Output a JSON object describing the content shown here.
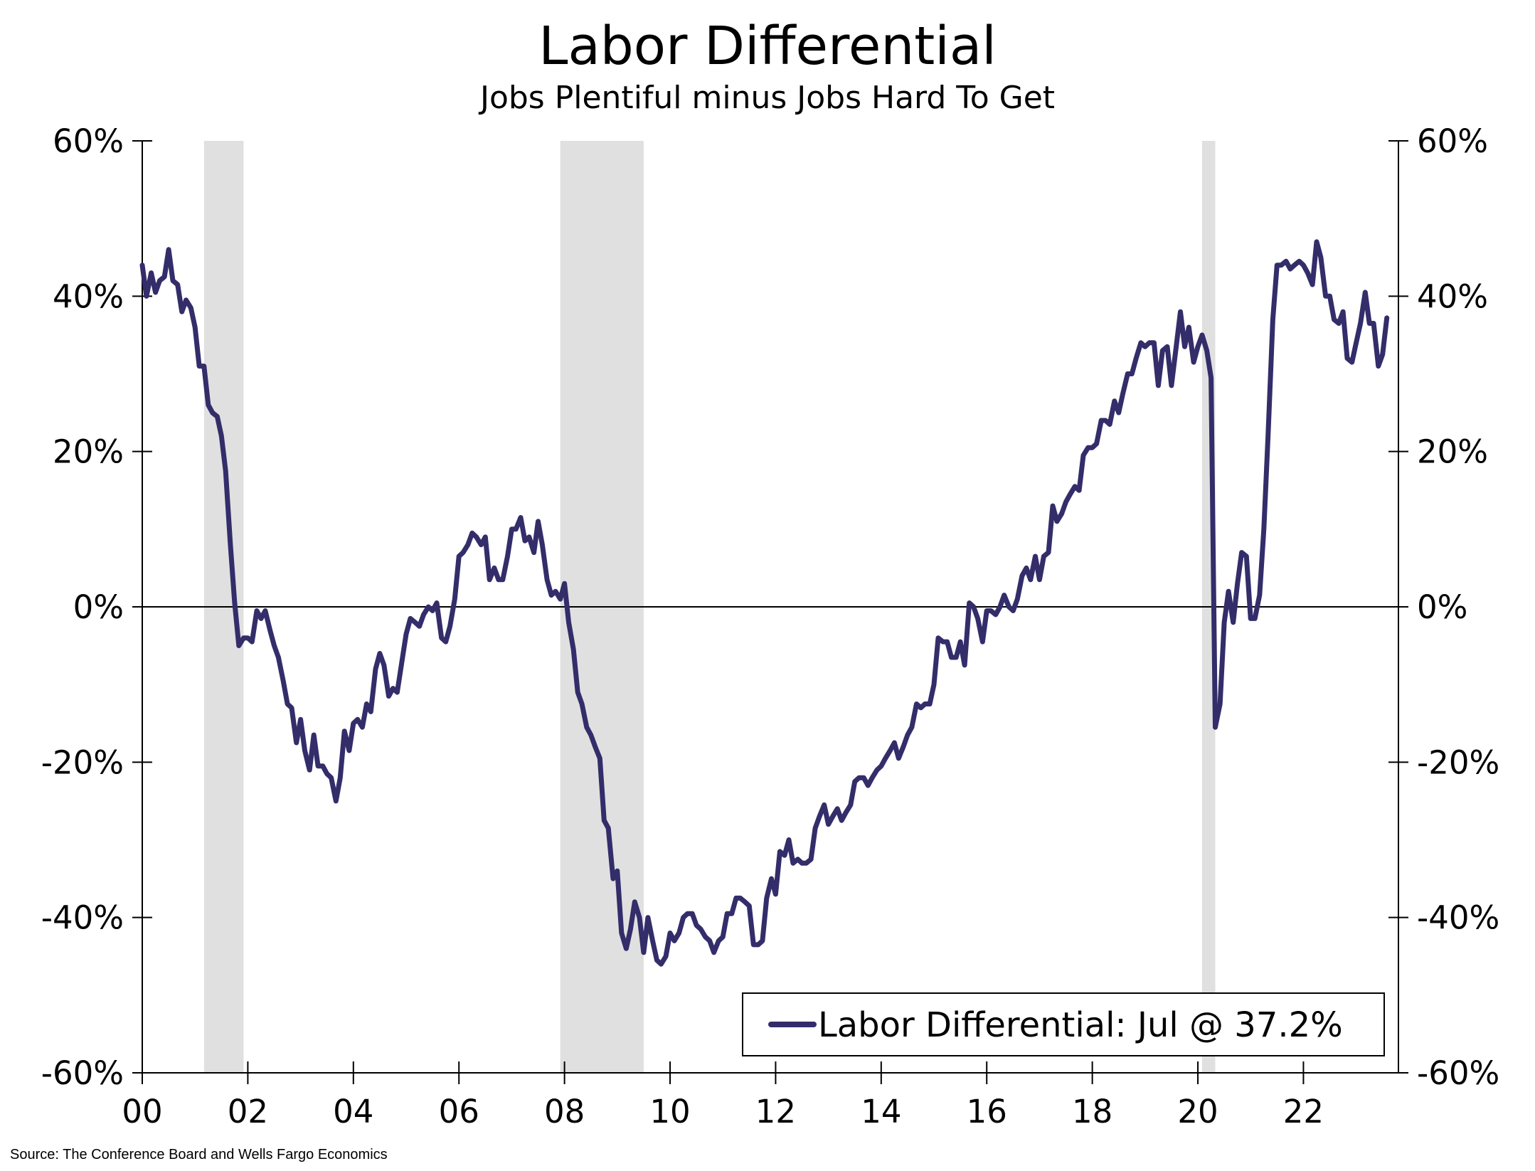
{
  "title": "Labor Differential",
  "subtitle": "Jobs Plentiful minus Jobs Hard To Get",
  "source": "Source: The Conference Board and Wells Fargo Economics",
  "colors": {
    "series": "#332d6a",
    "recession": "#e0e0e0",
    "axis": "#000000"
  },
  "chart_data": {
    "type": "line",
    "title": "Labor Differential",
    "subtitle": "Jobs Plentiful minus Jobs Hard To Get",
    "x_unit": "year",
    "xlim": [
      2000,
      2023.8
    ],
    "ylim": [
      -60,
      60
    ],
    "y_unit": "%",
    "y_ticks": [
      60,
      40,
      20,
      0,
      -20,
      -40,
      -60
    ],
    "y_tick_labels": [
      "60%",
      "40%",
      "20%",
      "0%",
      "-20%",
      "-40%",
      "-60%"
    ],
    "x_ticks": [
      2000,
      2002,
      2004,
      2006,
      2008,
      2010,
      2012,
      2014,
      2016,
      2018,
      2020,
      2022
    ],
    "x_tick_labels": [
      "00",
      "02",
      "04",
      "06",
      "08",
      "10",
      "12",
      "14",
      "16",
      "18",
      "20",
      "22"
    ],
    "secondary_y_axis": true,
    "grid": false,
    "zero_line": true,
    "recessions": [
      {
        "start": 2001.17,
        "end": 2001.92
      },
      {
        "start": 2007.92,
        "end": 2009.5
      },
      {
        "start": 2020.08,
        "end": 2020.33
      }
    ],
    "legend": {
      "placement": "bottom-right"
    },
    "series": [
      {
        "name": "Labor Differential: Jul @ 37.2%",
        "points": [
          [
            2000.0,
            44
          ],
          [
            2000.08,
            40
          ],
          [
            2000.17,
            43
          ],
          [
            2000.25,
            40.5
          ],
          [
            2000.33,
            42
          ],
          [
            2000.42,
            42.5
          ],
          [
            2000.5,
            46
          ],
          [
            2000.58,
            42
          ],
          [
            2000.67,
            41.5
          ],
          [
            2000.75,
            38
          ],
          [
            2000.83,
            39.5
          ],
          [
            2000.92,
            38.5
          ],
          [
            2001.0,
            36
          ],
          [
            2001.08,
            31
          ],
          [
            2001.17,
            31
          ],
          [
            2001.25,
            26
          ],
          [
            2001.33,
            25
          ],
          [
            2001.42,
            24.5
          ],
          [
            2001.5,
            22
          ],
          [
            2001.58,
            17.5
          ],
          [
            2001.67,
            8
          ],
          [
            2001.75,
            0.5
          ],
          [
            2001.83,
            -5
          ],
          [
            2001.92,
            -4
          ],
          [
            2002.0,
            -4
          ],
          [
            2002.08,
            -4.5
          ],
          [
            2002.17,
            -0.5
          ],
          [
            2002.25,
            -1.5
          ],
          [
            2002.33,
            -0.5
          ],
          [
            2002.42,
            -3
          ],
          [
            2002.5,
            -5
          ],
          [
            2002.58,
            -6.5
          ],
          [
            2002.67,
            -9.5
          ],
          [
            2002.75,
            -12.5
          ],
          [
            2002.83,
            -13
          ],
          [
            2002.92,
            -17.5
          ],
          [
            2003.0,
            -14.5
          ],
          [
            2003.08,
            -18.5
          ],
          [
            2003.17,
            -21
          ],
          [
            2003.25,
            -16.5
          ],
          [
            2003.33,
            -20.5
          ],
          [
            2003.42,
            -20.5
          ],
          [
            2003.5,
            -21.5
          ],
          [
            2003.58,
            -22
          ],
          [
            2003.67,
            -25
          ],
          [
            2003.75,
            -22
          ],
          [
            2003.83,
            -16
          ],
          [
            2003.92,
            -18.5
          ],
          [
            2004.0,
            -15
          ],
          [
            2004.08,
            -14.5
          ],
          [
            2004.17,
            -15.5
          ],
          [
            2004.25,
            -12.5
          ],
          [
            2004.33,
            -13.5
          ],
          [
            2004.42,
            -8
          ],
          [
            2004.5,
            -6
          ],
          [
            2004.58,
            -7.5
          ],
          [
            2004.67,
            -11.5
          ],
          [
            2004.75,
            -10.5
          ],
          [
            2004.83,
            -11
          ],
          [
            2004.92,
            -7
          ],
          [
            2005.0,
            -3.5
          ],
          [
            2005.08,
            -1.5
          ],
          [
            2005.17,
            -2
          ],
          [
            2005.25,
            -2.5
          ],
          [
            2005.33,
            -1
          ],
          [
            2005.42,
            0
          ],
          [
            2005.5,
            -0.5
          ],
          [
            2005.58,
            0.5
          ],
          [
            2005.67,
            -4
          ],
          [
            2005.75,
            -4.5
          ],
          [
            2005.83,
            -2.5
          ],
          [
            2005.92,
            1
          ],
          [
            2006.0,
            6.5
          ],
          [
            2006.08,
            7
          ],
          [
            2006.17,
            8
          ],
          [
            2006.25,
            9.5
          ],
          [
            2006.33,
            9
          ],
          [
            2006.42,
            8
          ],
          [
            2006.5,
            9
          ],
          [
            2006.58,
            3.5
          ],
          [
            2006.67,
            5
          ],
          [
            2006.75,
            3.5
          ],
          [
            2006.83,
            3.5
          ],
          [
            2006.92,
            6.5
          ],
          [
            2007.0,
            10
          ],
          [
            2007.08,
            10
          ],
          [
            2007.17,
            11.5
          ],
          [
            2007.25,
            8.5
          ],
          [
            2007.33,
            9
          ],
          [
            2007.42,
            7
          ],
          [
            2007.5,
            11
          ],
          [
            2007.58,
            8
          ],
          [
            2007.67,
            3.5
          ],
          [
            2007.75,
            1.5
          ],
          [
            2007.83,
            2
          ],
          [
            2007.92,
            1
          ],
          [
            2008.0,
            3
          ],
          [
            2008.08,
            -2
          ],
          [
            2008.17,
            -5.5
          ],
          [
            2008.25,
            -11
          ],
          [
            2008.33,
            -12.5
          ],
          [
            2008.42,
            -15.5
          ],
          [
            2008.5,
            -16.5
          ],
          [
            2008.58,
            -18
          ],
          [
            2008.67,
            -19.5
          ],
          [
            2008.75,
            -27.5
          ],
          [
            2008.83,
            -28.5
          ],
          [
            2008.92,
            -35
          ],
          [
            2009.0,
            -34
          ],
          [
            2009.08,
            -42
          ],
          [
            2009.17,
            -44
          ],
          [
            2009.25,
            -41.5
          ],
          [
            2009.33,
            -38
          ],
          [
            2009.42,
            -40
          ],
          [
            2009.5,
            -44.5
          ],
          [
            2009.58,
            -40
          ],
          [
            2009.67,
            -43
          ],
          [
            2009.75,
            -45.5
          ],
          [
            2009.83,
            -46
          ],
          [
            2009.92,
            -45
          ],
          [
            2010.0,
            -42
          ],
          [
            2010.08,
            -43
          ],
          [
            2010.17,
            -42
          ],
          [
            2010.25,
            -40
          ],
          [
            2010.33,
            -39.5
          ],
          [
            2010.42,
            -39.5
          ],
          [
            2010.5,
            -41
          ],
          [
            2010.58,
            -41.5
          ],
          [
            2010.67,
            -42.5
          ],
          [
            2010.75,
            -43
          ],
          [
            2010.83,
            -44.5
          ],
          [
            2010.92,
            -43
          ],
          [
            2011.0,
            -42.5
          ],
          [
            2011.08,
            -39.5
          ],
          [
            2011.17,
            -39.5
          ],
          [
            2011.25,
            -37.5
          ],
          [
            2011.33,
            -37.5
          ],
          [
            2011.42,
            -38
          ],
          [
            2011.5,
            -38.5
          ],
          [
            2011.58,
            -43.5
          ],
          [
            2011.67,
            -43.5
          ],
          [
            2011.75,
            -43
          ],
          [
            2011.83,
            -37.5
          ],
          [
            2011.92,
            -35
          ],
          [
            2012.0,
            -37
          ],
          [
            2012.08,
            -31.5
          ],
          [
            2012.17,
            -32
          ],
          [
            2012.25,
            -30
          ],
          [
            2012.33,
            -33
          ],
          [
            2012.42,
            -32.5
          ],
          [
            2012.5,
            -33
          ],
          [
            2012.58,
            -33
          ],
          [
            2012.67,
            -32.5
          ],
          [
            2012.75,
            -28.5
          ],
          [
            2012.83,
            -27
          ],
          [
            2012.92,
            -25.5
          ],
          [
            2013.0,
            -28
          ],
          [
            2013.08,
            -27
          ],
          [
            2013.17,
            -26
          ],
          [
            2013.25,
            -27.5
          ],
          [
            2013.33,
            -26.5
          ],
          [
            2013.42,
            -25.5
          ],
          [
            2013.5,
            -22.5
          ],
          [
            2013.58,
            -22
          ],
          [
            2013.67,
            -22
          ],
          [
            2013.75,
            -23
          ],
          [
            2013.83,
            -22
          ],
          [
            2013.92,
            -21
          ],
          [
            2014.0,
            -20.5
          ],
          [
            2014.08,
            -19.5
          ],
          [
            2014.17,
            -18.5
          ],
          [
            2014.25,
            -17.5
          ],
          [
            2014.33,
            -19.5
          ],
          [
            2014.42,
            -18
          ],
          [
            2014.5,
            -16.5
          ],
          [
            2014.58,
            -15.5
          ],
          [
            2014.67,
            -12.5
          ],
          [
            2014.75,
            -13
          ],
          [
            2014.83,
            -12.5
          ],
          [
            2014.92,
            -12.5
          ],
          [
            2015.0,
            -10
          ],
          [
            2015.08,
            -4
          ],
          [
            2015.17,
            -4.5
          ],
          [
            2015.25,
            -4.5
          ],
          [
            2015.33,
            -6.5
          ],
          [
            2015.42,
            -6.5
          ],
          [
            2015.5,
            -4.5
          ],
          [
            2015.58,
            -7.5
          ],
          [
            2015.67,
            0.5
          ],
          [
            2015.75,
            0
          ],
          [
            2015.83,
            -1.5
          ],
          [
            2015.92,
            -4.5
          ],
          [
            2016.0,
            -0.5
          ],
          [
            2016.08,
            -0.5
          ],
          [
            2016.17,
            -1
          ],
          [
            2016.25,
            0
          ],
          [
            2016.33,
            1.5
          ],
          [
            2016.42,
            0
          ],
          [
            2016.5,
            -0.5
          ],
          [
            2016.58,
            1
          ],
          [
            2016.67,
            4
          ],
          [
            2016.75,
            5
          ],
          [
            2016.83,
            3.5
          ],
          [
            2016.92,
            6.5
          ],
          [
            2017.0,
            3.5
          ],
          [
            2017.08,
            6.5
          ],
          [
            2017.17,
            7
          ],
          [
            2017.25,
            13
          ],
          [
            2017.33,
            11
          ],
          [
            2017.42,
            12
          ],
          [
            2017.5,
            13.5
          ],
          [
            2017.58,
            14.5
          ],
          [
            2017.67,
            15.5
          ],
          [
            2017.75,
            15
          ],
          [
            2017.83,
            19.5
          ],
          [
            2017.92,
            20.5
          ],
          [
            2018.0,
            20.5
          ],
          [
            2018.08,
            21
          ],
          [
            2018.17,
            24
          ],
          [
            2018.25,
            24
          ],
          [
            2018.33,
            23.5
          ],
          [
            2018.42,
            26.5
          ],
          [
            2018.5,
            25
          ],
          [
            2018.58,
            27.5
          ],
          [
            2018.67,
            30
          ],
          [
            2018.75,
            30
          ],
          [
            2018.83,
            32
          ],
          [
            2018.92,
            34
          ],
          [
            2019.0,
            33.5
          ],
          [
            2019.08,
            34
          ],
          [
            2019.17,
            34
          ],
          [
            2019.25,
            28.5
          ],
          [
            2019.33,
            33
          ],
          [
            2019.42,
            33.5
          ],
          [
            2019.5,
            28.5
          ],
          [
            2019.58,
            33
          ],
          [
            2019.67,
            38
          ],
          [
            2019.75,
            33.5
          ],
          [
            2019.83,
            36
          ],
          [
            2019.92,
            31.5
          ],
          [
            2020.0,
            33.5
          ],
          [
            2020.08,
            35
          ],
          [
            2020.17,
            33
          ],
          [
            2020.25,
            29.5
          ],
          [
            2020.33,
            -15.5
          ],
          [
            2020.42,
            -12.5
          ],
          [
            2020.5,
            -2
          ],
          [
            2020.58,
            2
          ],
          [
            2020.67,
            -2
          ],
          [
            2020.75,
            3
          ],
          [
            2020.83,
            7
          ],
          [
            2020.92,
            6.5
          ],
          [
            2021.0,
            -1.5
          ],
          [
            2021.08,
            -1.5
          ],
          [
            2021.17,
            1.5
          ],
          [
            2021.25,
            10
          ],
          [
            2021.33,
            22
          ],
          [
            2021.42,
            37
          ],
          [
            2021.5,
            44
          ],
          [
            2021.58,
            44
          ],
          [
            2021.67,
            44.5
          ],
          [
            2021.75,
            43.5
          ],
          [
            2021.83,
            44
          ],
          [
            2021.92,
            44.5
          ],
          [
            2022.0,
            44
          ],
          [
            2022.08,
            43
          ],
          [
            2022.17,
            41.5
          ],
          [
            2022.25,
            47
          ],
          [
            2022.33,
            45
          ],
          [
            2022.42,
            40
          ],
          [
            2022.5,
            40
          ],
          [
            2022.58,
            37
          ],
          [
            2022.67,
            36.5
          ],
          [
            2022.75,
            38
          ],
          [
            2022.83,
            32
          ],
          [
            2022.92,
            31.5
          ],
          [
            2023.0,
            34
          ],
          [
            2023.08,
            36.5
          ],
          [
            2023.17,
            40.5
          ],
          [
            2023.25,
            36.5
          ],
          [
            2023.33,
            36.5
          ],
          [
            2023.42,
            31
          ],
          [
            2023.5,
            32.5
          ],
          [
            2023.58,
            37.2
          ]
        ]
      }
    ]
  }
}
